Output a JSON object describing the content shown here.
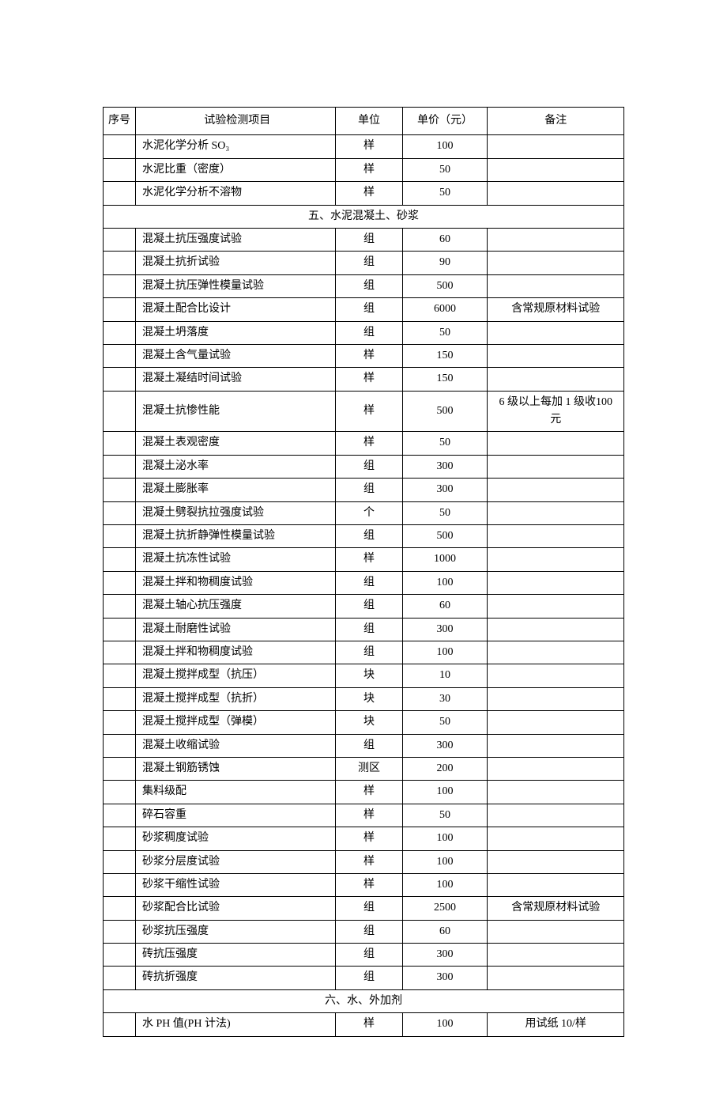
{
  "headers": {
    "seq": "序号",
    "item": "试验检测项目",
    "unit": "单位",
    "price": "单价（元）",
    "note": "备注"
  },
  "sections": [
    {
      "title": null,
      "rows": [
        {
          "item": "水泥化学分析 SO₃",
          "unit": "样",
          "price": "100",
          "note": ""
        },
        {
          "item": "水泥比重（密度）",
          "unit": "样",
          "price": "50",
          "note": ""
        },
        {
          "item": "水泥化学分析不溶物",
          "unit": "样",
          "price": "50",
          "note": ""
        }
      ]
    },
    {
      "title": "五、水泥混凝土、砂浆",
      "rows": [
        {
          "item": "混凝土抗压强度试验",
          "unit": "组",
          "price": "60",
          "note": ""
        },
        {
          "item": "混凝土抗折试验",
          "unit": "组",
          "price": "90",
          "note": ""
        },
        {
          "item": "混凝土抗压弹性模量试验",
          "unit": "组",
          "price": "500",
          "note": ""
        },
        {
          "item": "混凝土配合比设计",
          "unit": "组",
          "price": "6000",
          "note": "含常规原材料试验"
        },
        {
          "item": "混凝土坍落度",
          "unit": "组",
          "price": "50",
          "note": ""
        },
        {
          "item": "混凝土含气量试验",
          "unit": "样",
          "price": "150",
          "note": ""
        },
        {
          "item": "混凝土凝结时间试验",
          "unit": "样",
          "price": "150",
          "note": ""
        },
        {
          "item": "混凝土抗惨性能",
          "unit": "样",
          "price": "500",
          "note": "6 级以上每加 1 级收100 元"
        },
        {
          "item": "混凝土表观密度",
          "unit": "样",
          "price": "50",
          "note": ""
        },
        {
          "item": "混凝土泌水率",
          "unit": "组",
          "price": "300",
          "note": ""
        },
        {
          "item": "混凝土膨胀率",
          "unit": "组",
          "price": "300",
          "note": ""
        },
        {
          "item": "混凝土劈裂抗拉强度试验",
          "unit": "个",
          "price": "50",
          "note": ""
        },
        {
          "item": "混凝土抗折静弹性模量试验",
          "unit": "组",
          "price": "500",
          "note": ""
        },
        {
          "item": "混凝土抗冻性试验",
          "unit": "样",
          "price": "1000",
          "note": ""
        },
        {
          "item": "混凝土拌和物稠度试验",
          "unit": "组",
          "price": "100",
          "note": ""
        },
        {
          "item": "混凝土轴心抗压强度",
          "unit": "组",
          "price": "60",
          "note": ""
        },
        {
          "item": "混凝土耐磨性试验",
          "unit": "组",
          "price": "300",
          "note": ""
        },
        {
          "item": "混凝土拌和物稠度试验",
          "unit": "组",
          "price": "100",
          "note": ""
        },
        {
          "item": "混凝土搅拌成型（抗压）",
          "unit": "块",
          "price": "10",
          "note": ""
        },
        {
          "item": "混凝土搅拌成型（抗折）",
          "unit": "块",
          "price": "30",
          "note": ""
        },
        {
          "item": "混凝土搅拌成型（弹模）",
          "unit": "块",
          "price": "50",
          "note": ""
        },
        {
          "item": "混凝土收缩试验",
          "unit": "组",
          "price": "300",
          "note": ""
        },
        {
          "item": "混凝土钢筋锈蚀",
          "unit": "测区",
          "price": "200",
          "note": ""
        },
        {
          "item": "集料级配",
          "unit": "样",
          "price": "100",
          "note": ""
        },
        {
          "item": "碎石容重",
          "unit": "样",
          "price": "50",
          "note": ""
        },
        {
          "item": "砂浆稠度试验",
          "unit": "样",
          "price": "100",
          "note": ""
        },
        {
          "item": "砂浆分层度试验",
          "unit": "样",
          "price": "100",
          "note": ""
        },
        {
          "item": "砂浆干缩性试验",
          "unit": "样",
          "price": "100",
          "note": ""
        },
        {
          "item": "砂浆配合比试验",
          "unit": "组",
          "price": "2500",
          "note": "含常规原材料试验"
        },
        {
          "item": "砂浆抗压强度",
          "unit": "组",
          "price": "60",
          "note": ""
        },
        {
          "item": "砖抗压强度",
          "unit": "组",
          "price": "300",
          "note": ""
        },
        {
          "item": "砖抗折强度",
          "unit": "组",
          "price": "300",
          "note": ""
        }
      ]
    },
    {
      "title": "六、水、外加剂",
      "rows": [
        {
          "item": "水 PH 值(PH 计法)",
          "unit": "样",
          "price": "100",
          "note": "用试纸 10/样"
        }
      ]
    }
  ]
}
